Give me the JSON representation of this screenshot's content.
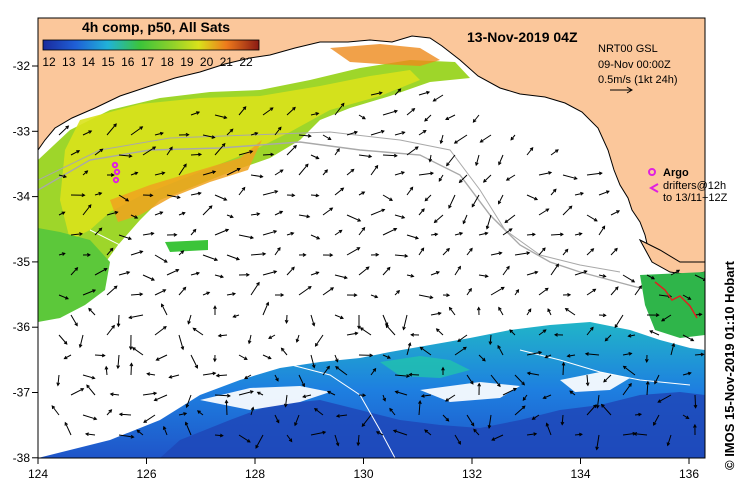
{
  "title": "13-Nov-2019 04Z",
  "colorbar": {
    "label": "4h comp, p50, All Sats",
    "ticks": [
      "12",
      "13",
      "14",
      "15",
      "16",
      "17",
      "18",
      "19",
      "20",
      "21",
      "22"
    ],
    "colors": [
      "#1a2a9c",
      "#1f5fd6",
      "#1e90ff",
      "#20b2d8",
      "#21c9a8",
      "#3cc43a",
      "#8fd12a",
      "#d9e21b",
      "#f5b21e",
      "#ee7a1c",
      "#c84c18"
    ]
  },
  "model_info": {
    "line1": "NRT00 GSL",
    "line2": "09-Nov 00:00Z",
    "line3": "0.5m/s (1kt 24h)"
  },
  "legend": {
    "argo_label": "Argo",
    "drifters_line1": "drifters@12h",
    "drifters_line2": "to 13/11+12Z",
    "argo_color": "#e020e0"
  },
  "axes": {
    "x_ticks": [
      "124",
      "126",
      "128",
      "130",
      "132",
      "134",
      "136"
    ],
    "y_ticks": [
      "-32",
      "-33",
      "-34",
      "-35",
      "-36",
      "-37",
      "-38"
    ]
  },
  "credit": "© IMOS 15-Nov-2019 01:10 Hobart",
  "colors": {
    "land": "#fbc79b",
    "coast": "#000000",
    "bathy": "#a9a9a9"
  }
}
